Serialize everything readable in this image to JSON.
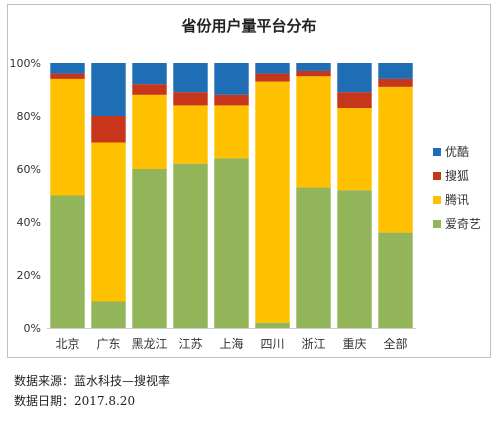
{
  "chart_data": {
    "type": "bar",
    "stacked": true,
    "title": "省份用户量平台分布",
    "categories": [
      "北京",
      "广东",
      "黑龙江",
      "江苏",
      "上海",
      "四川",
      "浙江",
      "重庆",
      "全部"
    ],
    "series": [
      {
        "name": "爱奇艺",
        "color": "#92b55a",
        "values": [
          50,
          10,
          60,
          62,
          64,
          2,
          53,
          52,
          36
        ]
      },
      {
        "name": "腾讯",
        "color": "#ffc000",
        "values": [
          44,
          60,
          28,
          22,
          20,
          91,
          42,
          31,
          55
        ]
      },
      {
        "name": "搜狐",
        "color": "#c7361a",
        "values": [
          2,
          10,
          4,
          5,
          4,
          3,
          2,
          6,
          3
        ]
      },
      {
        "name": "优酷",
        "color": "#1f6eb5",
        "values": [
          4,
          20,
          8,
          11,
          12,
          4,
          3,
          11,
          6
        ]
      }
    ],
    "yticks": [
      "0%",
      "20%",
      "40%",
      "60%",
      "80%",
      "100%"
    ],
    "ylim": [
      0,
      100
    ],
    "legend_position": "right",
    "legend_order": [
      "优酷",
      "搜狐",
      "腾讯",
      "爱奇艺"
    ]
  },
  "source": {
    "line1": "数据来源：蓝水科技—搜视率",
    "line2": "数据日期：2017.8.20"
  }
}
